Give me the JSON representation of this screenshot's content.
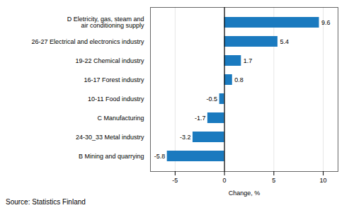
{
  "chart_data": {
    "type": "bar",
    "orientation": "horizontal",
    "categories": [
      "B Mining and quarrying",
      "24-30_33 Metal industry",
      "C Manufacturing",
      "10-11 Food industry",
      "16-17 Forest industry",
      "19-22 Chemical industry",
      "26-27 Electrical and electronics industry",
      "D Eletricity, gas, steam and\nair conditioning supply"
    ],
    "values": [
      -5.8,
      -3.2,
      -1.7,
      -0.5,
      0.8,
      1.7,
      5.4,
      9.6
    ],
    "color": "#1a7abf",
    "xlabel": "Change, %",
    "xlim": [
      -7.5,
      11.5
    ],
    "xticks": [
      -5,
      0,
      5,
      10
    ],
    "grid": true,
    "data_labels": true,
    "caption": "Source: Statistics Finland"
  }
}
